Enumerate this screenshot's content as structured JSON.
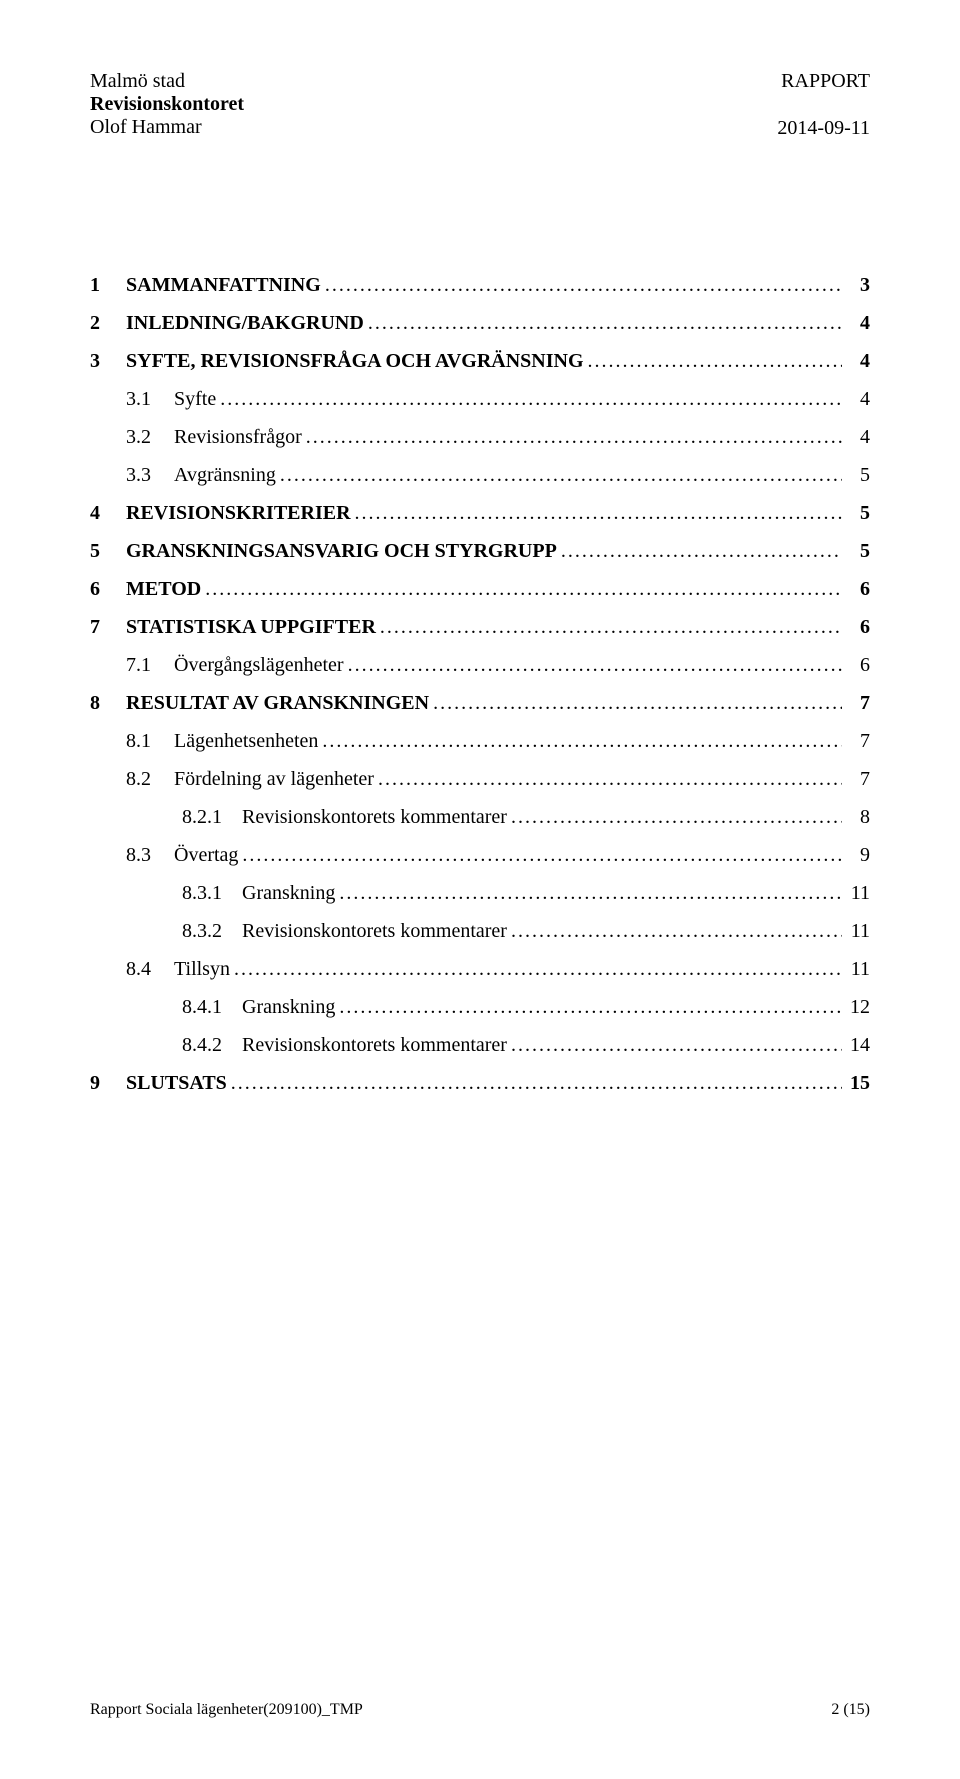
{
  "header": {
    "org": "Malmö stad",
    "dept": "Revisionskontoret",
    "author": "Olof Hammar",
    "doc_type": "RAPPORT",
    "date": "2014-09-11"
  },
  "toc": [
    {
      "level": 1,
      "num": "1",
      "title": "SAMMANFATTNING",
      "page": "3"
    },
    {
      "level": 1,
      "num": "2",
      "title": "INLEDNING/BAKGRUND",
      "page": "4"
    },
    {
      "level": 1,
      "num": "3",
      "title": "SYFTE, REVISIONSFRÅGA OCH AVGRÄNSNING",
      "page": "4"
    },
    {
      "level": 2,
      "num": "3.1",
      "title": "Syfte",
      "page": "4"
    },
    {
      "level": 2,
      "num": "3.2",
      "title": "Revisionsfrågor",
      "page": "4"
    },
    {
      "level": 2,
      "num": "3.3",
      "title": "Avgränsning",
      "page": "5"
    },
    {
      "level": 1,
      "num": "4",
      "title": "REVISIONSKRITERIER",
      "page": "5"
    },
    {
      "level": 1,
      "num": "5",
      "title": "GRANSKNINGSANSVARIG OCH STYRGRUPP",
      "page": "5"
    },
    {
      "level": 1,
      "num": "6",
      "title": "METOD",
      "page": "6"
    },
    {
      "level": 1,
      "num": "7",
      "title": "STATISTISKA UPPGIFTER",
      "page": "6"
    },
    {
      "level": 2,
      "num": "7.1",
      "title": "Övergångslägenheter",
      "page": "6"
    },
    {
      "level": 1,
      "num": "8",
      "title": "RESULTAT AV GRANSKNINGEN",
      "page": "7"
    },
    {
      "level": 2,
      "num": "8.1",
      "title": "Lägenhetsenheten",
      "page": "7"
    },
    {
      "level": 2,
      "num": "8.2",
      "title": "Fördelning av lägenheter",
      "page": "7"
    },
    {
      "level": 3,
      "num": "8.2.1",
      "title": "Revisionskontorets kommentarer",
      "page": "8"
    },
    {
      "level": 2,
      "num": "8.3",
      "title": "Övertag",
      "page": "9"
    },
    {
      "level": 3,
      "num": "8.3.1",
      "title": "Granskning",
      "page": "11"
    },
    {
      "level": 3,
      "num": "8.3.2",
      "title": "Revisionskontorets kommentarer",
      "page": "11"
    },
    {
      "level": 2,
      "num": "8.4",
      "title": "Tillsyn",
      "page": "11"
    },
    {
      "level": 3,
      "num": "8.4.1",
      "title": "Granskning",
      "page": "12"
    },
    {
      "level": 3,
      "num": "8.4.2",
      "title": "Revisionskontorets kommentarer",
      "page": "14"
    },
    {
      "level": 1,
      "num": "9",
      "title": "SLUTSATS",
      "page": "15"
    }
  ],
  "footer": {
    "left": "Rapport Sociala lägenheter(209100)_TMP",
    "right": "2 (15)"
  }
}
